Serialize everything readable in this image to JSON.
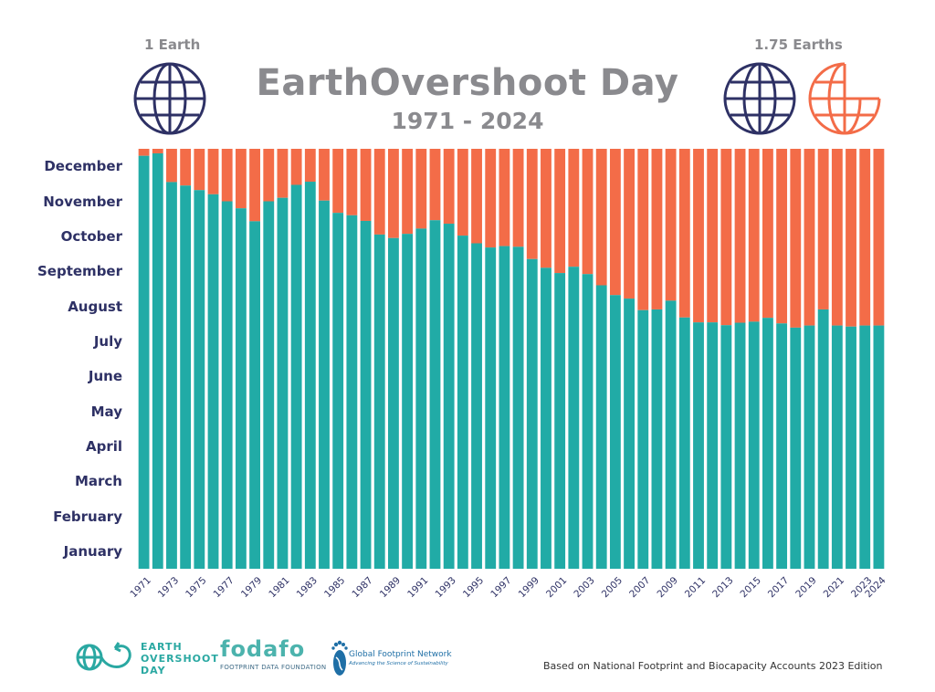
{
  "header": {
    "title": "EarthOvershoot Day",
    "subtitle": "1971 - 2024",
    "left_label": "1 Earth",
    "right_label": "1.75 Earths"
  },
  "icons": {
    "left_globe": "globe-icon",
    "right_globe": "globe-icon",
    "right_partial_globe": "partial-globe-icon"
  },
  "colors": {
    "overshoot_day": "#21aba6",
    "remainder": "#f36c48",
    "title": "#8a8a8e",
    "axis_text": "#2e3165"
  },
  "chart_data": {
    "type": "bar",
    "stacked": true,
    "title": "EarthOvershoot Day",
    "subtitle": "1971 - 2024",
    "y_tick_labels": [
      "January",
      "February",
      "March",
      "April",
      "May",
      "June",
      "July",
      "August",
      "September",
      "October",
      "November",
      "December"
    ],
    "y_unit": "month of year",
    "ylim": [
      0,
      12
    ],
    "x_tick_labels": [
      "1971",
      "1973",
      "1975",
      "1977",
      "1979",
      "1981",
      "1983",
      "1985",
      "1987",
      "1989",
      "1991",
      "1993",
      "1995",
      "1997",
      "1999",
      "2001",
      "2003",
      "2005",
      "2007",
      "2009",
      "2011",
      "2013",
      "2015",
      "2017",
      "2019",
      "2021",
      "2023",
      "2024"
    ],
    "categories": [
      "1971",
      "1972",
      "1973",
      "1974",
      "1975",
      "1976",
      "1977",
      "1978",
      "1979",
      "1980",
      "1981",
      "1982",
      "1983",
      "1984",
      "1985",
      "1986",
      "1987",
      "1988",
      "1989",
      "1990",
      "1991",
      "1992",
      "1993",
      "1994",
      "1995",
      "1996",
      "1997",
      "1998",
      "1999",
      "2000",
      "2001",
      "2002",
      "2003",
      "2004",
      "2005",
      "2006",
      "2007",
      "2008",
      "2009",
      "2010",
      "2011",
      "2012",
      "2013",
      "2014",
      "2015",
      "2016",
      "2017",
      "2018",
      "2019",
      "2020",
      "2021",
      "2022",
      "2023",
      "2024"
    ],
    "series": [
      {
        "values": [
          11.8,
          11.87,
          11.05,
          10.95,
          10.82,
          10.7,
          10.5,
          10.3,
          9.93,
          10.5,
          10.6,
          10.97,
          11.06,
          10.52,
          10.17,
          10.1,
          9.94,
          9.55,
          9.45,
          9.57,
          9.72,
          9.96,
          9.86,
          9.52,
          9.3,
          9.18,
          9.22,
          9.2,
          8.85,
          8.6,
          8.45,
          8.63,
          8.42,
          8.1,
          7.82,
          7.72,
          7.39,
          7.41,
          7.66,
          7.18,
          7.04,
          7.04,
          6.96,
          7.03,
          7.06,
          7.17,
          7.01,
          6.89,
          6.95,
          7.41,
          6.95,
          6.92,
          6.95,
          6.95
        ]
      },
      {
        "values": [
          0.2,
          0.13,
          0.95,
          1.05,
          1.18,
          1.3,
          1.5,
          1.7,
          2.07,
          1.5,
          1.4,
          1.03,
          0.94,
          1.48,
          1.83,
          1.9,
          2.06,
          2.45,
          2.55,
          2.43,
          2.28,
          2.04,
          2.14,
          2.48,
          2.7,
          2.82,
          2.78,
          2.8,
          3.15,
          3.4,
          3.55,
          3.37,
          3.58,
          3.9,
          4.18,
          4.28,
          4.61,
          4.59,
          4.34,
          4.82,
          4.96,
          4.96,
          5.04,
          4.97,
          4.94,
          4.83,
          4.99,
          5.11,
          5.05,
          4.59,
          5.05,
          5.08,
          5.05,
          5.05
        ]
      }
    ],
    "legend": "none",
    "grid": false
  },
  "footer": {
    "logo_eod_line1": "EARTH",
    "logo_eod_line2": "OVERSHOOT",
    "logo_eod_line3": "DAY",
    "logo_fodafo": "fodafo",
    "logo_fodafo_sub": "FOOTPRINT DATA FOUNDATION",
    "logo_gfn": "Global Footprint Network",
    "logo_gfn_sub": "Advancing the Science of Sustainability",
    "note": "Based on National Footprint and Biocapacity Accounts 2023 Edition"
  }
}
